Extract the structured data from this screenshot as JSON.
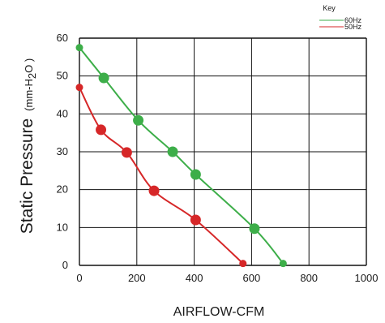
{
  "chart_data": {
    "type": "line",
    "xlabel": "AIRFLOW-CFM",
    "ylabel": "Static Pressure",
    "ylabel_unit": {
      "prefix": "(mm-H",
      "sub": "2",
      "suffix": "O )"
    },
    "xlim": [
      0,
      1000
    ],
    "ylim": [
      0,
      60
    ],
    "x_ticks": [
      "0",
      "200",
      "400",
      "600",
      "800",
      "1000"
    ],
    "y_ticks": [
      "0",
      "10",
      "20",
      "30",
      "40",
      "50",
      "60"
    ],
    "grid": true,
    "legend": {
      "title": "Key",
      "placement": "top-right"
    },
    "series": [
      {
        "name": "60Hz",
        "color": "#3dae49",
        "x": [
          0,
          85,
          205,
          325,
          405,
          610,
          710
        ],
        "y": [
          57.5,
          49.5,
          38.3,
          30,
          24,
          9.7,
          0.5
        ]
      },
      {
        "name": "50Hz",
        "color": "#d62728",
        "x": [
          0,
          75,
          165,
          260,
          405,
          570
        ],
        "y": [
          47,
          35.8,
          29.8,
          19.7,
          12,
          0.5
        ]
      }
    ]
  }
}
